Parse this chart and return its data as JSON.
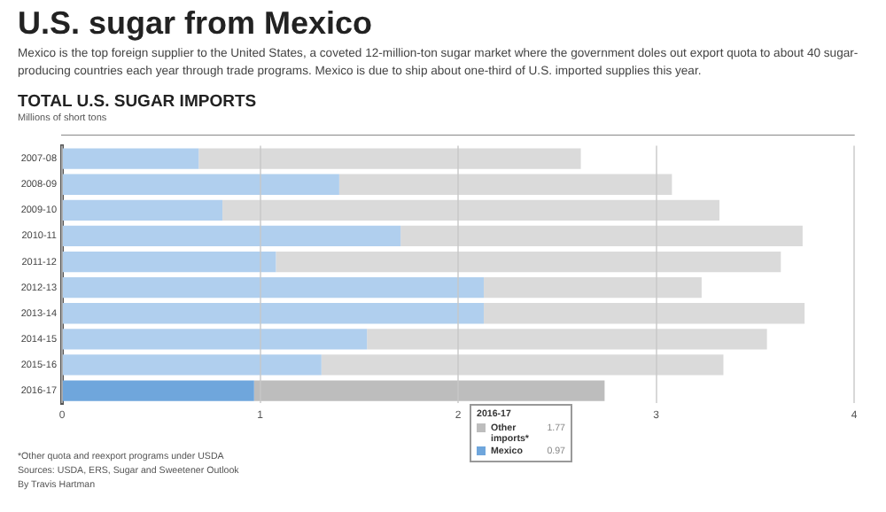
{
  "chart_data": {
    "type": "bar",
    "orientation": "horizontal",
    "stacked": true,
    "title": "U.S. sugar from Mexico",
    "subtitle": "Mexico is the top foreign supplier to the United States, a coveted 12-million-ton sugar market where the government doles out export quota to about 40 sugar-producing countries each year through trade programs. Mexico is due to ship about one-third of U.S. imported supplies this year.",
    "xlabel": "Millions of short tons",
    "annotations": [
      "TOTAL U.S. SUGAR IMPORTS",
      "*Other quota and reexport programs under USDA",
      "Sources: USDA, ERS, Sugar and Sweetener Outlook",
      "By Travis Hartman",
      "1.77",
      "0.97"
    ],
    "categories": [
      "2007-08",
      "2008-09",
      "2009-10",
      "2010-11",
      "2011-12",
      "2012-13",
      "2013-14",
      "2014-15",
      "2015-16",
      "2016-17"
    ],
    "series": [
      {
        "name": "Mexico",
        "colors": [
          "#b0cfee",
          "#b0cfee",
          "#b0cfee",
          "#b0cfee",
          "#b0cfee",
          "#b0cfee",
          "#b0cfee",
          "#b0cfee",
          "#b0cfee",
          "#6fa6dc"
        ],
        "values": [
          0.69,
          1.4,
          0.81,
          1.71,
          1.08,
          2.13,
          2.13,
          1.54,
          1.31,
          0.97
        ]
      },
      {
        "name": "Other imports*",
        "colors": [
          "#dadada",
          "#dadada",
          "#dadada",
          "#dadada",
          "#dadada",
          "#dadada",
          "#dadada",
          "#dadada",
          "#dadada",
          "#bdbdbd"
        ],
        "values": [
          1.93,
          1.68,
          2.51,
          2.03,
          2.55,
          1.1,
          1.62,
          2.02,
          2.03,
          1.77
        ]
      }
    ],
    "legend_title": "2016-17",
    "legend": "bottom",
    "xlim": [
      0,
      4
    ],
    "xticks": [
      0,
      1,
      2,
      3,
      4
    ],
    "grid": "x"
  }
}
